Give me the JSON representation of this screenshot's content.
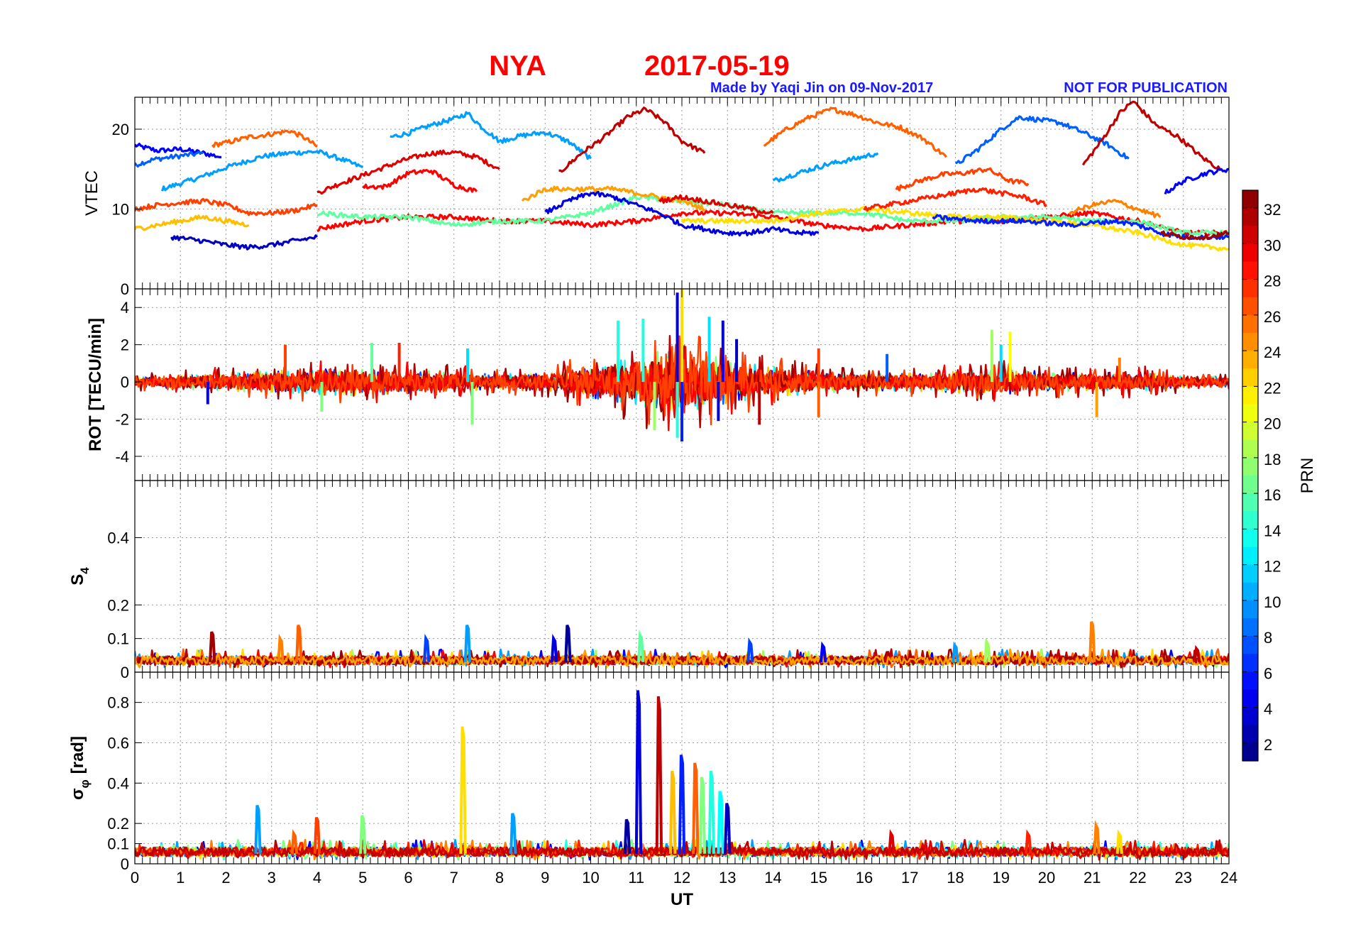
{
  "header": {
    "title_station": "NYA",
    "title_date": "2017-05-19",
    "credit": "Made by Yaqi Jin on 09-Nov-2017",
    "notice": "NOT FOR PUBLICATION",
    "title_color": "#ff0000",
    "credit_color": "#1a1aff"
  },
  "colorbar": {
    "label": "PRN",
    "ticks": [
      "2",
      "4",
      "6",
      "8",
      "10",
      "12",
      "14",
      "16",
      "18",
      "20",
      "22",
      "24",
      "26",
      "28",
      "30",
      "32"
    ],
    "range": [
      1,
      33
    ],
    "colormap": "jet"
  },
  "chart_data": [
    {
      "type": "line",
      "panel": "VTEC",
      "ylabel": "VTEC",
      "xlim": [
        0,
        24
      ],
      "ylim": [
        0,
        24
      ],
      "yticks": [
        "0",
        "10",
        "20"
      ],
      "grid": true,
      "series": [
        {
          "prn": 5,
          "x": [
            0,
            0.5,
            1,
            1.5,
            1.9
          ],
          "values": [
            18,
            17.3,
            17.5,
            17,
            16.5
          ]
        },
        {
          "prn": 8,
          "x": [
            0,
            0.4,
            0.8,
            1.2,
            1.5
          ],
          "values": [
            15.5,
            16.2,
            16.5,
            16.8,
            17
          ]
        },
        {
          "prn": 10,
          "x": [
            0.6,
            1,
            1.5,
            2,
            2.8,
            3.4,
            4,
            4.5,
            5
          ],
          "values": [
            12.5,
            13.2,
            14.1,
            15.2,
            16.6,
            17,
            17.2,
            16.3,
            15.2
          ]
        },
        {
          "prn": 26,
          "x": [
            1.7,
            2,
            2.5,
            3,
            3.4,
            3.7,
            4
          ],
          "values": [
            18,
            18.3,
            19,
            19.4,
            19.8,
            19,
            17.8
          ]
        },
        {
          "prn": 10,
          "x": [
            5.6,
            6,
            6.5,
            7,
            7.3,
            7.6,
            8
          ],
          "values": [
            19,
            19.5,
            20.5,
            21.3,
            22,
            20.3,
            18.5
          ]
        },
        {
          "prn": 30,
          "x": [
            4,
            4.5,
            5,
            5.5,
            6,
            6.5,
            7,
            7.5,
            8
          ],
          "values": [
            12,
            13.2,
            14.2,
            15.3,
            16.3,
            17,
            17.1,
            16.5,
            15
          ]
        },
        {
          "prn": 10,
          "x": [
            8,
            8.5,
            9,
            9.5,
            10
          ],
          "values": [
            18.5,
            19.2,
            19.6,
            18.5,
            16.3
          ]
        },
        {
          "prn": 31,
          "x": [
            9.3,
            9.8,
            10.3,
            10.8,
            11.2,
            11.6,
            12,
            12.5
          ],
          "values": [
            14.5,
            17,
            19,
            21.5,
            22.5,
            21,
            18.5,
            17
          ]
        },
        {
          "prn": 26,
          "x": [
            13.8,
            14.3,
            14.8,
            15.3,
            15.8,
            16.3,
            16.8,
            17.3,
            17.8
          ],
          "values": [
            18,
            20,
            21.5,
            22.5,
            21.8,
            20.8,
            20.2,
            18.8,
            16.5
          ]
        },
        {
          "prn": 10,
          "x": [
            14,
            14.6,
            15.2,
            15.8,
            16.3
          ],
          "values": [
            13.5,
            14.6,
            15.6,
            16.3,
            17
          ]
        },
        {
          "prn": 8,
          "x": [
            18,
            18.5,
            19,
            19.4,
            19.8,
            20.3,
            20.8,
            21.3,
            21.8
          ],
          "values": [
            15.5,
            17.5,
            20,
            21.5,
            21.2,
            20.8,
            19.6,
            18.2,
            16.3
          ]
        },
        {
          "prn": 31,
          "x": [
            20.8,
            21.2,
            21.6,
            21.9,
            22.4,
            22.9,
            23.4,
            23.8
          ],
          "values": [
            15.5,
            18.5,
            22,
            23.5,
            20.5,
            19,
            16.5,
            15
          ]
        },
        {
          "prn": 27,
          "x": [
            16.7,
            17.2,
            17.7,
            18.2,
            18.7,
            19.2,
            19.6
          ],
          "values": [
            12.5,
            13.5,
            14.3,
            14.5,
            15,
            13.5,
            13.2
          ]
        },
        {
          "prn": 5,
          "x": [
            22.6,
            23,
            23.5,
            24
          ],
          "values": [
            12,
            13.5,
            14.5,
            15
          ]
        },
        {
          "prn": 29,
          "x": [
            5,
            5.5,
            6,
            6.5,
            7,
            7.5
          ],
          "values": [
            12.8,
            12.8,
            14.5,
            14.8,
            13,
            12.2
          ]
        },
        {
          "prn": 27,
          "x": [
            0,
            0.5,
            1,
            1.5,
            2,
            2.5,
            3,
            3.5,
            4
          ],
          "values": [
            10,
            10.5,
            10.8,
            11,
            10.5,
            9.5,
            9.5,
            9.8,
            10.5
          ]
        },
        {
          "prn": 3,
          "x": [
            0.8,
            1.5,
            2,
            2.5,
            3,
            3.5,
            4
          ],
          "values": [
            6.5,
            6,
            5.5,
            5.2,
            5.5,
            6,
            6.5
          ]
        },
        {
          "prn": 23,
          "x": [
            0,
            0.5,
            1,
            1.5,
            2,
            2.5
          ],
          "values": [
            7.5,
            8,
            8.5,
            9,
            8.5,
            8
          ]
        },
        {
          "prn": 29,
          "x": [
            4,
            5,
            6,
            7,
            8,
            9,
            10,
            11,
            12,
            13,
            14,
            15,
            16,
            17,
            18,
            19,
            20,
            21,
            22,
            23,
            24
          ],
          "values": [
            7.5,
            8.5,
            9,
            9,
            8.5,
            8.5,
            8,
            8.5,
            9.5,
            9.5,
            9,
            8,
            7.5,
            8,
            8.5,
            8.5,
            9,
            9.5,
            8.5,
            7,
            7
          ]
        },
        {
          "prn": 16,
          "x": [
            4,
            5,
            6,
            7,
            8,
            9,
            10,
            11,
            12,
            13,
            14,
            15,
            16,
            17,
            18,
            19,
            20,
            21,
            22,
            23,
            24
          ],
          "values": [
            9.5,
            9,
            9,
            8,
            8.5,
            8.5,
            9.5,
            11.5,
            11,
            10.5,
            9.5,
            9.5,
            9.5,
            8.5,
            8.5,
            9,
            9,
            8.5,
            8.5,
            7,
            7
          ]
        },
        {
          "prn": 4,
          "x": [
            9,
            9.5,
            10,
            10.5,
            11,
            11.5,
            12,
            12.5,
            13,
            13.5,
            14,
            14.5,
            15
          ],
          "values": [
            9.5,
            11,
            12,
            11.5,
            10.5,
            9.5,
            8,
            7.5,
            7,
            7,
            7.5,
            7,
            7
          ]
        },
        {
          "prn": 24,
          "x": [
            8.5,
            9,
            9.5,
            10,
            10.5,
            11,
            11.5,
            12,
            12.5
          ],
          "values": [
            11,
            12.5,
            12.5,
            12.5,
            12.5,
            12,
            11.5,
            11,
            10
          ]
        },
        {
          "prn": 30,
          "x": [
            11.5,
            12,
            12.5,
            13,
            13.5,
            14
          ],
          "values": [
            11,
            11.5,
            11,
            10.5,
            10,
            9.5
          ]
        },
        {
          "prn": 22,
          "x": [
            12,
            13,
            14,
            15,
            16,
            17,
            18,
            19,
            20,
            21,
            22,
            23,
            24
          ],
          "values": [
            8.5,
            8.5,
            8.5,
            9.5,
            10,
            9.5,
            9,
            9,
            8.5,
            8,
            7,
            5.5,
            5
          ]
        },
        {
          "prn": 28,
          "x": [
            16,
            17,
            17.5,
            18,
            18.5,
            19,
            19.5,
            20
          ],
          "values": [
            10,
            11,
            11.5,
            12,
            12.5,
            12,
            11.5,
            10.5
          ]
        },
        {
          "prn": 25,
          "x": [
            20.5,
            21,
            21.5,
            22,
            22.5
          ],
          "values": [
            9.5,
            10.5,
            11,
            10,
            9
          ]
        },
        {
          "prn": 6,
          "x": [
            17.5,
            18.5,
            19.5,
            20.5,
            21.5,
            22,
            22.5,
            23,
            24
          ],
          "values": [
            9,
            8.5,
            8.5,
            8,
            8.5,
            8,
            7,
            6.5,
            6.5
          ]
        },
        {
          "prn": 32,
          "x": [
            22.5,
            23,
            23.5,
            24
          ],
          "values": [
            7,
            6.5,
            6.5,
            7
          ]
        }
      ]
    },
    {
      "type": "line",
      "panel": "ROT",
      "ylabel": "ROT [TECU/min]",
      "xlim": [
        0,
        24
      ],
      "ylim": [
        -5.3,
        5
      ],
      "yticks": [
        "-4",
        "-2",
        "0",
        "2",
        "4"
      ],
      "grid": true,
      "envelope": {
        "x": [
          0,
          1,
          2,
          3,
          4,
          5,
          6,
          7,
          8,
          9,
          9.5,
          10,
          10.5,
          11,
          11.5,
          12,
          12.5,
          13,
          13.5,
          14,
          15,
          16,
          17,
          18,
          19,
          20,
          21,
          22,
          23,
          24
        ],
        "values": [
          0.5,
          0.7,
          0.9,
          1.1,
          1.4,
          1.3,
          1.2,
          1.0,
          0.8,
          0.9,
          1.3,
          1.6,
          2.0,
          2.6,
          3.0,
          3.2,
          2.8,
          2.2,
          1.8,
          1.5,
          1.1,
          0.9,
          0.9,
          1.1,
          1.3,
          1.0,
          0.9,
          1.0,
          0.6,
          0.5
        ]
      },
      "spikes": [
        {
          "x": 3.3,
          "value": 2.0,
          "prn": 27
        },
        {
          "x": 5.2,
          "value": 2.1,
          "prn": 16
        },
        {
          "x": 5.8,
          "value": 2.1,
          "prn": 28
        },
        {
          "x": 4.1,
          "value": -1.6,
          "prn": 17
        },
        {
          "x": 7.4,
          "value": -2.3,
          "prn": 17
        },
        {
          "x": 7.3,
          "value": 1.8,
          "prn": 12
        },
        {
          "x": 10.6,
          "value": 3.3,
          "prn": 14
        },
        {
          "x": 11.15,
          "value": 3.4,
          "prn": 14
        },
        {
          "x": 11.4,
          "value": -2.6,
          "prn": 18
        },
        {
          "x": 11.9,
          "value": 4.8,
          "prn": 4
        },
        {
          "x": 12.0,
          "value": 5.0,
          "prn": 22
        },
        {
          "x": 12.0,
          "value": -3.2,
          "prn": 6
        },
        {
          "x": 11.9,
          "value": -3.0,
          "prn": 14
        },
        {
          "x": 12.6,
          "value": 3.5,
          "prn": 12
        },
        {
          "x": 12.9,
          "value": 3.3,
          "prn": 5
        },
        {
          "x": 13.2,
          "value": 2.3,
          "prn": 3
        },
        {
          "x": 12.8,
          "value": -2.1,
          "prn": 4
        },
        {
          "x": 13.7,
          "value": -2.3,
          "prn": 31
        },
        {
          "x": 15.0,
          "value": 1.8,
          "prn": 27
        },
        {
          "x": 16.5,
          "value": 1.5,
          "prn": 8
        },
        {
          "x": 18.8,
          "value": 2.8,
          "prn": 18
        },
        {
          "x": 19.2,
          "value": 2.7,
          "prn": 21
        },
        {
          "x": 19.0,
          "value": 2.0,
          "prn": 12
        },
        {
          "x": 21.1,
          "value": -1.9,
          "prn": 24
        },
        {
          "x": 21.6,
          "value": 1.3,
          "prn": 25
        },
        {
          "x": 15.0,
          "value": -1.9,
          "prn": 26
        },
        {
          "x": 1.6,
          "value": -1.2,
          "prn": 5
        }
      ]
    },
    {
      "type": "line",
      "panel": "S4",
      "ylabel_main": "S",
      "ylabel_sub": "4",
      "xlim": [
        0,
        24
      ],
      "ylim": [
        0,
        0.57
      ],
      "yticks": [
        "0",
        "0.1",
        "0.2",
        "0.4"
      ],
      "grid": true,
      "baseline": 0.03,
      "spikes": [
        {
          "x": 1.7,
          "value": 0.12,
          "prn": 32
        },
        {
          "x": 3.6,
          "value": 0.14,
          "prn": 26
        },
        {
          "x": 3.2,
          "value": 0.1,
          "prn": 25
        },
        {
          "x": 6.4,
          "value": 0.1,
          "prn": 7
        },
        {
          "x": 7.3,
          "value": 0.14,
          "prn": 10
        },
        {
          "x": 9.2,
          "value": 0.1,
          "prn": 4
        },
        {
          "x": 9.5,
          "value": 0.14,
          "prn": 2
        },
        {
          "x": 11.1,
          "value": 0.11,
          "prn": 16
        },
        {
          "x": 13.5,
          "value": 0.09,
          "prn": 7
        },
        {
          "x": 15.1,
          "value": 0.08,
          "prn": 5
        },
        {
          "x": 18.0,
          "value": 0.08,
          "prn": 10
        },
        {
          "x": 18.7,
          "value": 0.09,
          "prn": 18
        },
        {
          "x": 21.0,
          "value": 0.15,
          "prn": 25
        },
        {
          "x": 23.3,
          "value": 0.07,
          "prn": 31
        }
      ]
    },
    {
      "type": "line",
      "panel": "sigma_phi",
      "ylabel_main": "σ",
      "ylabel_sub": "φ",
      "ylabel_unit": "[rad]",
      "xlabel": "UT",
      "xlim": [
        0,
        24
      ],
      "ylim": [
        0,
        0.95
      ],
      "xticks": [
        "0",
        "1",
        "2",
        "3",
        "4",
        "5",
        "6",
        "7",
        "8",
        "9",
        "10",
        "11",
        "12",
        "13",
        "14",
        "15",
        "16",
        "17",
        "18",
        "19",
        "20",
        "21",
        "22",
        "23",
        "24"
      ],
      "yticks": [
        "0",
        "0.1",
        "0.2",
        "0.4",
        "0.6",
        "0.8"
      ],
      "grid": true,
      "baseline": 0.05,
      "spikes": [
        {
          "x": 2.7,
          "value": 0.29,
          "prn": 10
        },
        {
          "x": 3.5,
          "value": 0.15,
          "prn": 26
        },
        {
          "x": 4.0,
          "value": 0.23,
          "prn": 27
        },
        {
          "x": 5.0,
          "value": 0.24,
          "prn": 17
        },
        {
          "x": 7.2,
          "value": 0.68,
          "prn": 22
        },
        {
          "x": 8.3,
          "value": 0.25,
          "prn": 10
        },
        {
          "x": 10.8,
          "value": 0.22,
          "prn": 2
        },
        {
          "x": 11.05,
          "value": 0.86,
          "prn": 4
        },
        {
          "x": 11.5,
          "value": 0.83,
          "prn": 31
        },
        {
          "x": 11.8,
          "value": 0.46,
          "prn": 23
        },
        {
          "x": 12.0,
          "value": 0.54,
          "prn": 6
        },
        {
          "x": 12.3,
          "value": 0.5,
          "prn": 26
        },
        {
          "x": 12.45,
          "value": 0.43,
          "prn": 17
        },
        {
          "x": 12.65,
          "value": 0.46,
          "prn": 14
        },
        {
          "x": 12.85,
          "value": 0.36,
          "prn": 13
        },
        {
          "x": 13.0,
          "value": 0.3,
          "prn": 3
        },
        {
          "x": 16.6,
          "value": 0.15,
          "prn": 30
        },
        {
          "x": 19.6,
          "value": 0.15,
          "prn": 28
        },
        {
          "x": 21.1,
          "value": 0.19,
          "prn": 25
        },
        {
          "x": 21.6,
          "value": 0.15,
          "prn": 22
        }
      ]
    }
  ]
}
